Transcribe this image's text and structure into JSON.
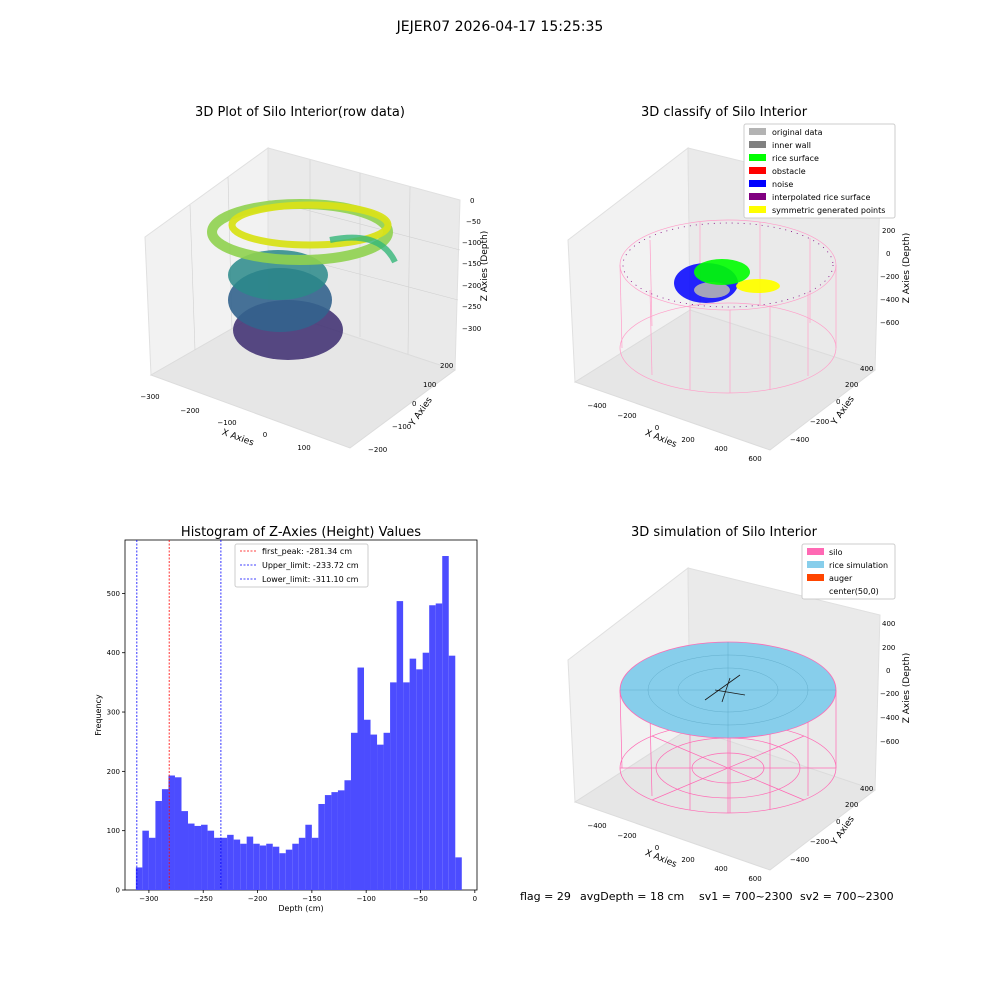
{
  "suptitle": "JEJER07 2026-04-17 15:25:35",
  "info_text": {
    "flag": "flag = 29",
    "avg_depth": "avgDepth = 18 cm",
    "sv1": "sv1 = 700~2300",
    "sv2": "sv2 = 700~2300"
  },
  "chart_data": [
    {
      "type": "scatter",
      "projection": "3d",
      "title": "3D Plot of Silo Interior(row data)",
      "xlabel": "X Axies",
      "ylabel": "Y Axies",
      "zlabel": "Z Axies (Depth)",
      "xticks": [
        "−300",
        "−200",
        "−100",
        "0",
        "100"
      ],
      "yticks": [
        "−200",
        "−100",
        "0",
        "100",
        "200"
      ],
      "zticks": [
        "0",
        "−50",
        "−100",
        "−150",
        "−200",
        "−250",
        "−300"
      ],
      "colormap": "viridis",
      "series": [
        {
          "x": [
            -180,
            -100,
            -20,
            60,
            120,
            60,
            -20,
            -100,
            -180,
            -140,
            -60,
            0,
            -140,
            -60,
            -100,
            -80
          ],
          "y": [
            0,
            120,
            160,
            80,
            -20,
            -100,
            -140,
            -100,
            40,
            60,
            60,
            20,
            -40,
            -60,
            0,
            -20
          ],
          "z": [
            -90,
            -40,
            -30,
            -50,
            -70,
            -110,
            -90,
            -100,
            -110,
            -150,
            -170,
            -180,
            -230,
            -250,
            -280,
            -320
          ]
        }
      ],
      "grid": true
    },
    {
      "type": "scatter",
      "projection": "3d",
      "title": "3D classify of Silo Interior",
      "xlabel": "X Axies",
      "ylabel": "Y Axies",
      "zlabel": "Z Axies (Depth)",
      "xticks": [
        "−400",
        "−200",
        "0",
        "200",
        "400",
        "600"
      ],
      "yticks": [
        "−400",
        "−200",
        "0",
        "200",
        "400"
      ],
      "zticks": [
        "200",
        "0",
        "−200",
        "−400",
        "−600"
      ],
      "legend": [
        {
          "label": "original data",
          "color": "#b3b3b3"
        },
        {
          "label": "inner wall",
          "color": "#808080"
        },
        {
          "label": "rice surface",
          "color": "#00ff00"
        },
        {
          "label": "obstacle",
          "color": "#ff0000"
        },
        {
          "label": "noise",
          "color": "#0000ff"
        },
        {
          "label": "interpolated rice surface",
          "color": "#800080"
        },
        {
          "label": "symmetric generated points",
          "color": "#ffff00"
        }
      ],
      "legend_loc": "upper right",
      "grid": true
    },
    {
      "type": "bar",
      "title": "Histogram of Z-Axies (Height) Values",
      "xlabel": "Depth (cm)",
      "ylabel": "Frequency",
      "bar_color": "#4c4cff",
      "xlim": [
        -322,
        2
      ],
      "ylim": [
        0,
        590
      ],
      "xticks": [
        -300,
        -250,
        -200,
        -150,
        -100,
        -50,
        0
      ],
      "xticklabels": [
        "−300",
        "−250",
        "−200",
        "−150",
        "−100",
        "−50",
        "0"
      ],
      "yticks": [
        0,
        100,
        200,
        300,
        400,
        500
      ],
      "bin_edges_start": -312,
      "bin_width": 6,
      "values": [
        38,
        100,
        88,
        150,
        170,
        193,
        190,
        133,
        112,
        108,
        110,
        100,
        88,
        88,
        93,
        85,
        78,
        90,
        78,
        75,
        78,
        73,
        62,
        68,
        78,
        88,
        110,
        88,
        145,
        160,
        165,
        168,
        185,
        265,
        375,
        287,
        262,
        245,
        265,
        350,
        487,
        350,
        390,
        372,
        400,
        480,
        483,
        563,
        395,
        55
      ],
      "vlines": [
        {
          "x": -281.34,
          "color": "#ff0000",
          "label": "first_peak: -281.34 cm"
        },
        {
          "x": -233.72,
          "color": "#0000ff",
          "label": "Upper_limit: -233.72 cm"
        },
        {
          "x": -311.1,
          "color": "#0000ff",
          "label": "Lower_limit: -311.10 cm"
        }
      ],
      "legend_loc": "upper center"
    },
    {
      "type": "scatter",
      "projection": "3d",
      "title": "3D simulation of Silo Interior",
      "xlabel": "X Axies",
      "ylabel": "Y Axies",
      "zlabel": "Z Axies (Depth)",
      "xticks": [
        "−400",
        "−200",
        "0",
        "200",
        "400",
        "600"
      ],
      "yticks": [
        "−400",
        "−200",
        "0",
        "200",
        "400"
      ],
      "zticks": [
        "400",
        "200",
        "0",
        "−200",
        "−400",
        "−600"
      ],
      "legend": [
        {
          "label": "silo",
          "color": "#ff69b4"
        },
        {
          "label": "rice simulation",
          "color": "#87ceeb"
        },
        {
          "label": "auger",
          "color": "#ff4500"
        },
        {
          "label": "center(50,0)",
          "color": ""
        }
      ],
      "legend_loc": "upper right",
      "grid": true
    }
  ]
}
